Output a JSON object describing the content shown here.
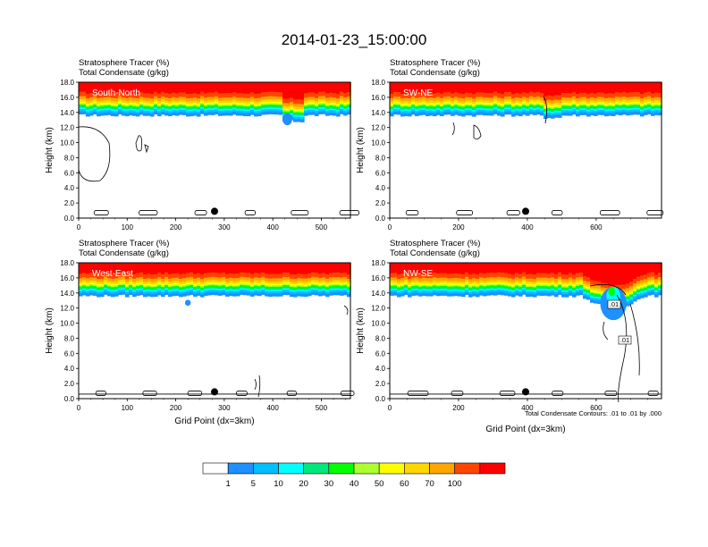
{
  "figure": {
    "title": "2014-01-23_15:00:00",
    "colorbar": {
      "labels": [
        "1",
        "5",
        "10",
        "20",
        "30",
        "40",
        "50",
        "60",
        "70",
        "100"
      ],
      "colors": [
        "#ffffff",
        "#1e90ff",
        "#00bfff",
        "#00ffff",
        "#00e87a",
        "#00ff00",
        "#adff2f",
        "#ffff00",
        "#ffd700",
        "#ffa500",
        "#ff4500",
        "#ff0000"
      ]
    }
  },
  "chart_data": [
    {
      "type": "heatmap",
      "panel": "south-north",
      "region_label": "South-North",
      "title_lines": [
        "Stratosphere Tracer   (%)",
        "Total Condensate   (g/kg)"
      ],
      "xlabel": "",
      "ylabel": "Height (km)",
      "xlim": [
        0,
        560
      ],
      "ylim": [
        0,
        18
      ],
      "xticks": [
        "0",
        "100",
        "200",
        "300",
        "400",
        "500"
      ],
      "yticks": [
        "0.0",
        "2.0",
        "4.0",
        "6.0",
        "8.0",
        "10.0",
        "12.0",
        "14.0",
        "16.0",
        "18.0"
      ],
      "marker_x": 280,
      "contour_labels": [],
      "note": ""
    },
    {
      "type": "heatmap",
      "panel": "sw-ne",
      "region_label": "SW-NE",
      "title_lines": [
        "Stratosphere Tracer   (%)",
        "Total Condensate   (g/kg)"
      ],
      "xlabel": "",
      "ylabel": "Height (km)",
      "xlim": [
        0,
        790
      ],
      "ylim": [
        0,
        18
      ],
      "xticks": [
        "0",
        "200",
        "400",
        "600"
      ],
      "yticks": [
        "0.0",
        "2.0",
        "4.0",
        "6.0",
        "8.0",
        "10.0",
        "12.0",
        "14.0",
        "16.0",
        "18.0"
      ],
      "marker_x": 395,
      "contour_labels": [],
      "note": ""
    },
    {
      "type": "heatmap",
      "panel": "west-east",
      "region_label": "West-East",
      "title_lines": [
        "Stratosphere Tracer   (%)",
        "Total Condensate   (g/kg)"
      ],
      "xlabel": "Grid Point (dx=3km)",
      "ylabel": "Height (km)",
      "xlim": [
        0,
        560
      ],
      "ylim": [
        0,
        18
      ],
      "xticks": [
        "0",
        "100",
        "200",
        "300",
        "400",
        "500"
      ],
      "yticks": [
        "0.0",
        "2.0",
        "4.0",
        "6.0",
        "8.0",
        "10.0",
        "12.0",
        "14.0",
        "16.0",
        "18.0"
      ],
      "marker_x": 280,
      "contour_labels": [],
      "note": ""
    },
    {
      "type": "heatmap",
      "panel": "nw-se",
      "region_label": "NW-SE",
      "title_lines": [
        "Stratosphere Tracer   (%)",
        "Total Condensate   (g/kg)"
      ],
      "xlabel": "Grid Point (dx=3km)",
      "ylabel": "Height (km)",
      "xlim": [
        0,
        790
      ],
      "ylim": [
        0,
        18
      ],
      "xticks": [
        "0",
        "200",
        "400",
        "600"
      ],
      "yticks": [
        "0.0",
        "2.0",
        "4.0",
        "6.0",
        "8.0",
        "10.0",
        "12.0",
        "14.0",
        "16.0",
        "18.0"
      ],
      "marker_x": 395,
      "contour_labels": [
        ".01",
        ".01"
      ],
      "note": "Total Condensate Contours: .01 to .01 by .000"
    }
  ]
}
